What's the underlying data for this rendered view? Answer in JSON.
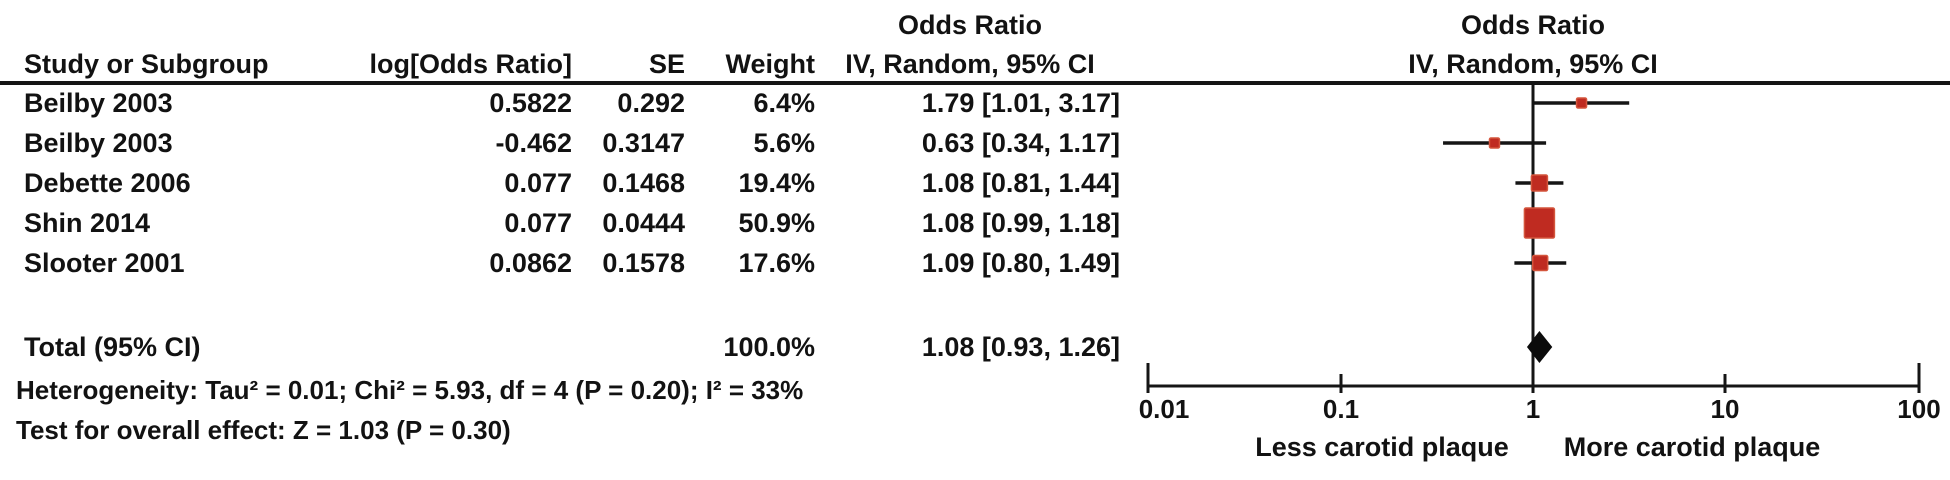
{
  "header": {
    "col_study": "Study or Subgroup",
    "col_log_or": "log[Odds Ratio]",
    "col_se": "SE",
    "col_weight": "Weight",
    "col_or_title": "Odds Ratio",
    "col_or_subtitle": "IV, Random, 95% CI",
    "plot_title": "Odds Ratio",
    "plot_subtitle": "IV, Random, 95% CI"
  },
  "chart_data": {
    "type": "forest",
    "x_scale": "log10",
    "xlim": [
      0.01,
      100
    ],
    "x_ticks": [
      {
        "value": 0.01,
        "label": "0.01"
      },
      {
        "value": 0.1,
        "label": "0.1"
      },
      {
        "value": 1,
        "label": "1"
      },
      {
        "value": 10,
        "label": "10"
      },
      {
        "value": 100,
        "label": "100"
      }
    ],
    "axis_label_left": "Less carotid plaque",
    "axis_label_right": "More carotid plaque",
    "marker_color": "#bf2b21",
    "marker_edge_color": "#d4553c",
    "line_color": "#151515",
    "diamond_color": "#0b0b0b",
    "studies": [
      {
        "study": "Beilby 2003",
        "log_or": "0.5822",
        "se": "0.292",
        "weight": "6.4%",
        "weight_pct": 6.4,
        "or": 1.79,
        "ci_lo": 1.01,
        "ci_hi": 3.17,
        "ci_text": "1.79 [1.01, 3.17]"
      },
      {
        "study": "Beilby 2003",
        "log_or": "-0.462",
        "se": "0.3147",
        "weight": "5.6%",
        "weight_pct": 5.6,
        "or": 0.63,
        "ci_lo": 0.34,
        "ci_hi": 1.17,
        "ci_text": "0.63 [0.34, 1.17]"
      },
      {
        "study": "Debette 2006",
        "log_or": "0.077",
        "se": "0.1468",
        "weight": "19.4%",
        "weight_pct": 19.4,
        "or": 1.08,
        "ci_lo": 0.81,
        "ci_hi": 1.44,
        "ci_text": "1.08 [0.81, 1.44]"
      },
      {
        "study": "Shin 2014",
        "log_or": "0.077",
        "se": "0.0444",
        "weight": "50.9%",
        "weight_pct": 50.9,
        "or": 1.08,
        "ci_lo": 0.99,
        "ci_hi": 1.18,
        "ci_text": "1.08 [0.99, 1.18]"
      },
      {
        "study": "Slooter 2001",
        "log_or": "0.0862",
        "se": "0.1578",
        "weight": "17.6%",
        "weight_pct": 17.6,
        "or": 1.09,
        "ci_lo": 0.8,
        "ci_hi": 1.49,
        "ci_text": "1.09 [0.80, 1.49]"
      }
    ],
    "total": {
      "label": "Total (95% CI)",
      "weight": "100.0%",
      "or": 1.08,
      "ci_lo": 0.93,
      "ci_hi": 1.26,
      "ci_text": "1.08 [0.93, 1.26]"
    },
    "heterogeneity": "Heterogeneity: Tau² = 0.01; Chi² = 5.93, df = 4 (P = 0.20); I² = 33%",
    "overall_effect": "Test for overall effect: Z = 1.03 (P = 0.30)"
  }
}
